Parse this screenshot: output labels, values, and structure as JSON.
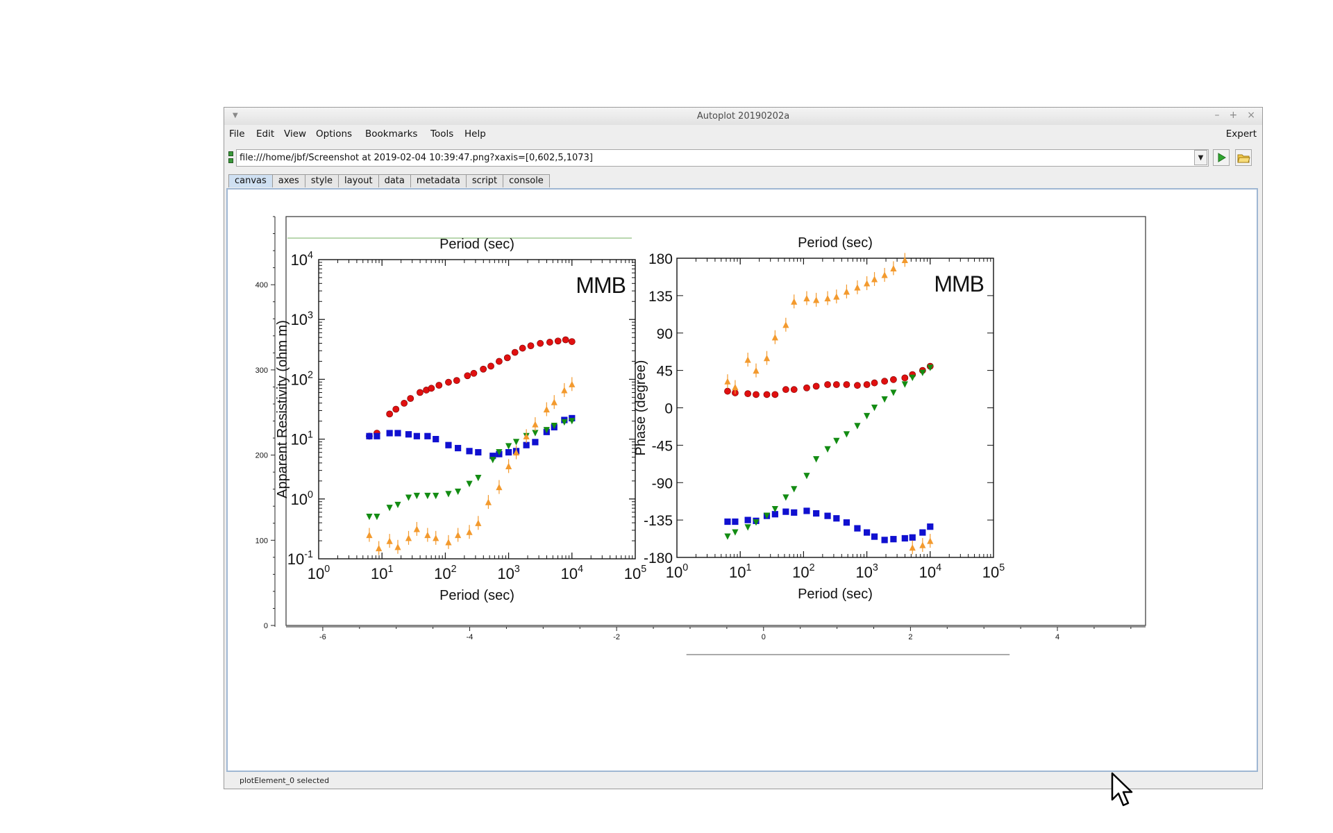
{
  "window": {
    "title": "Autoplot 20190202a",
    "controls": [
      "–",
      "+",
      "×"
    ]
  },
  "menu": {
    "items": [
      "File",
      "Edit",
      "View",
      "Options",
      "Bookmarks",
      "Tools",
      "Help"
    ],
    "expert": "Expert"
  },
  "url": {
    "value": "file:///home/jbf/Screenshot at 2019-02-04 10:39:47.png?xaxis=[0,602,5,1073]"
  },
  "tabs": [
    "canvas",
    "axes",
    "style",
    "layout",
    "data",
    "metadata",
    "script",
    "console"
  ],
  "active_tab": "canvas",
  "status": "plotElement_0 selected",
  "chart_data": [
    {
      "type": "scatter",
      "title": "",
      "xlabel": "",
      "ylabel": "",
      "xlim": [
        -6.5,
        5.2
      ],
      "ylim": [
        0,
        480
      ],
      "x_ticks": [
        -6,
        -4,
        -2,
        0,
        2,
        4
      ],
      "y_ticks": [
        0,
        100,
        200,
        300,
        400
      ],
      "grid": false,
      "note": "Autoplot axes framing an embedded raster image"
    },
    {
      "type": "scatter",
      "scale": "log-log",
      "title": "MMB",
      "top_label": "Period (sec)",
      "xlabel": "Period (sec)",
      "ylabel": "Apparent Resistivity (ohm m)",
      "x_tick_labels": [
        "10⁰",
        "10¹",
        "10²",
        "10³",
        "10⁴",
        "10⁵"
      ],
      "y_tick_labels": [
        "10⁻¹",
        "10⁰",
        "10¹",
        "10²",
        "10³",
        "10⁴"
      ],
      "xlim_log10": [
        0,
        5
      ],
      "ylim_log10": [
        -1,
        4
      ],
      "series": [
        {
          "color": "#e01010",
          "marker": "circle",
          "x": [
            0.8,
            0.92,
            1.12,
            1.22,
            1.35,
            1.45,
            1.6,
            1.7,
            1.78,
            1.9,
            2.05,
            2.18,
            2.35,
            2.45,
            2.6,
            2.72,
            2.85,
            2.98,
            3.1,
            3.22,
            3.35,
            3.5,
            3.65,
            3.78,
            3.9,
            4.0
          ],
          "y": [
            1.05,
            1.1,
            1.42,
            1.5,
            1.6,
            1.68,
            1.78,
            1.82,
            1.85,
            1.9,
            1.95,
            1.98,
            2.06,
            2.1,
            2.17,
            2.22,
            2.3,
            2.36,
            2.45,
            2.52,
            2.56,
            2.6,
            2.62,
            2.64,
            2.66,
            2.63
          ]
        },
        {
          "color": "#1010d0",
          "marker": "square",
          "x": [
            0.8,
            0.92,
            1.12,
            1.25,
            1.42,
            1.55,
            1.72,
            1.85,
            2.05,
            2.2,
            2.38,
            2.52,
            2.75,
            2.85,
            3.0,
            3.12,
            3.28,
            3.42,
            3.6,
            3.72,
            3.88,
            4.0
          ],
          "y": [
            1.05,
            1.05,
            1.1,
            1.1,
            1.08,
            1.05,
            1.05,
            1.0,
            0.9,
            0.85,
            0.8,
            0.78,
            0.72,
            0.75,
            0.78,
            0.8,
            0.9,
            0.95,
            1.12,
            1.2,
            1.32,
            1.35
          ]
        },
        {
          "color": "#138c13",
          "marker": "triangle-down",
          "x": [
            0.8,
            0.92,
            1.12,
            1.25,
            1.42,
            1.55,
            1.72,
            1.85,
            2.05,
            2.2,
            2.38,
            2.52,
            2.75,
            2.85,
            3.0,
            3.12,
            3.28,
            3.42,
            3.6,
            3.72,
            3.88,
            4.0
          ],
          "y": [
            -0.3,
            -0.3,
            -0.15,
            -0.1,
            0.02,
            0.05,
            0.05,
            0.05,
            0.08,
            0.12,
            0.25,
            0.35,
            0.65,
            0.78,
            0.88,
            0.95,
            1.05,
            1.1,
            1.15,
            1.22,
            1.28,
            1.3
          ]
        },
        {
          "color": "#f39a2e",
          "marker": "triangle-up",
          "x": [
            0.8,
            0.95,
            1.12,
            1.25,
            1.42,
            1.55,
            1.72,
            1.85,
            2.05,
            2.2,
            2.38,
            2.52,
            2.68,
            2.85,
            3.0,
            3.12,
            3.28,
            3.42,
            3.6,
            3.72,
            3.88,
            4.0
          ],
          "y": [
            -0.6,
            -0.82,
            -0.7,
            -0.8,
            -0.65,
            -0.5,
            -0.6,
            -0.65,
            -0.72,
            -0.6,
            -0.55,
            -0.4,
            -0.05,
            0.2,
            0.55,
            0.78,
            1.05,
            1.25,
            1.5,
            1.62,
            1.82,
            1.92
          ]
        }
      ]
    },
    {
      "type": "scatter",
      "scale": "log-x",
      "title": "MMB",
      "top_label": "Period (sec)",
      "xlabel": "Period (sec)",
      "ylabel": "Phase (degree)",
      "x_tick_labels": [
        "10⁰",
        "10¹",
        "10²",
        "10³",
        "10⁴",
        "10⁵"
      ],
      "y_tick_labels": [
        "180",
        "135",
        "90",
        "45",
        "0",
        "-45",
        "-90",
        "-135",
        "-180"
      ],
      "xlim_log10": [
        0,
        5
      ],
      "ylim": [
        -180,
        180
      ],
      "series": [
        {
          "color": "#e01010",
          "marker": "circle",
          "x": [
            0.8,
            0.92,
            1.12,
            1.25,
            1.42,
            1.55,
            1.72,
            1.85,
            2.05,
            2.2,
            2.38,
            2.52,
            2.68,
            2.85,
            3.0,
            3.12,
            3.28,
            3.42,
            3.6,
            3.72,
            3.88,
            4.0
          ],
          "y": [
            20,
            18,
            17,
            16,
            16,
            16,
            22,
            22,
            24,
            26,
            28,
            28,
            28,
            27,
            28,
            30,
            32,
            34,
            36,
            40,
            45,
            50
          ]
        },
        {
          "color": "#1010d0",
          "marker": "square",
          "x": [
            0.8,
            0.92,
            1.12,
            1.25,
            1.42,
            1.55,
            1.72,
            1.85,
            2.05,
            2.2,
            2.38,
            2.52,
            2.68,
            2.85,
            3.0,
            3.12,
            3.28,
            3.42,
            3.6,
            3.72,
            3.88,
            4.0
          ],
          "y": [
            -137,
            -137,
            -135,
            -136,
            -130,
            -128,
            -125,
            -126,
            -124,
            -127,
            -130,
            -133,
            -138,
            -145,
            -150,
            -155,
            -159,
            -158,
            -157,
            -156,
            -150,
            -143
          ]
        },
        {
          "color": "#138c13",
          "marker": "triangle-down",
          "x": [
            0.8,
            0.92,
            1.12,
            1.25,
            1.42,
            1.55,
            1.72,
            1.85,
            2.05,
            2.2,
            2.38,
            2.52,
            2.68,
            2.85,
            3.0,
            3.12,
            3.28,
            3.42,
            3.6,
            3.72,
            3.88,
            4.0
          ],
          "y": [
            -155,
            -150,
            -144,
            -138,
            -130,
            -122,
            -108,
            -98,
            -82,
            -62,
            -50,
            -40,
            -32,
            -22,
            -10,
            0,
            10,
            18,
            28,
            36,
            42,
            48
          ]
        },
        {
          "color": "#f39a2e",
          "marker": "triangle-up",
          "x": [
            0.8,
            0.92,
            1.12,
            1.25,
            1.42,
            1.55,
            1.72,
            1.85,
            2.05,
            2.2,
            2.38,
            2.52,
            2.68,
            2.85,
            3.0,
            3.12,
            3.28,
            3.42,
            3.6,
            3.72,
            3.88,
            4.0
          ],
          "y": [
            32,
            25,
            58,
            45,
            60,
            85,
            100,
            128,
            132,
            130,
            132,
            134,
            140,
            145,
            150,
            155,
            160,
            168,
            178,
            -168,
            -165,
            -160
          ]
        }
      ]
    }
  ]
}
